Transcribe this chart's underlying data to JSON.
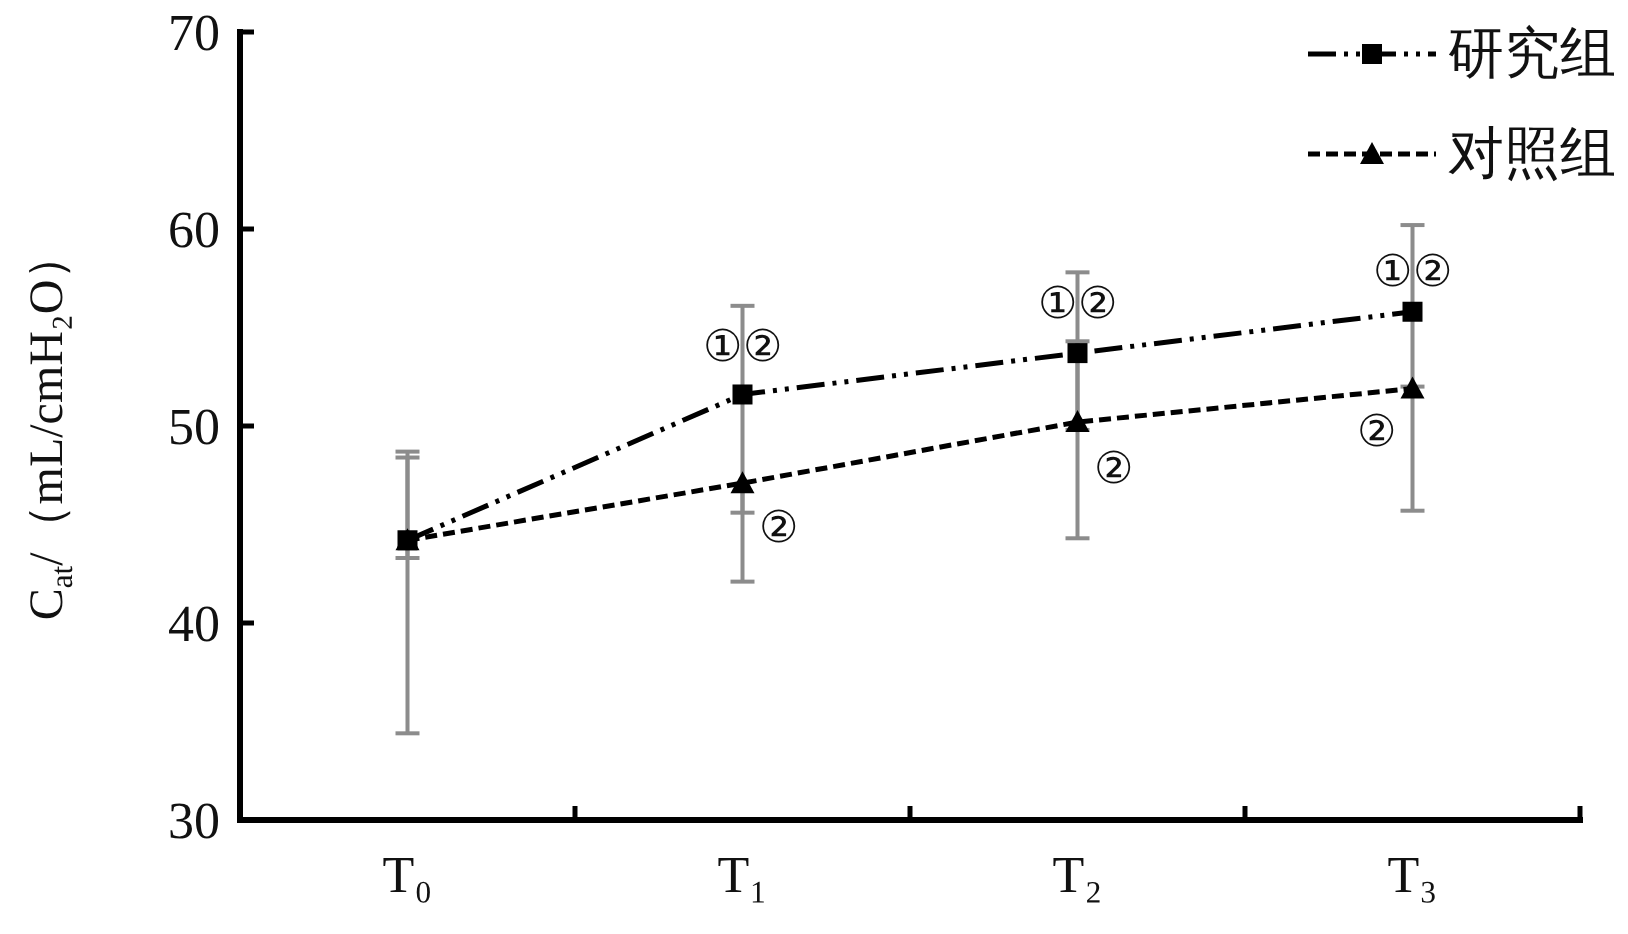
{
  "chart_data": {
    "type": "line",
    "ylabel": "C$_{at}$/（mL/cmH₂O）",
    "categories": [
      "T₀",
      "T₁",
      "T₂",
      "T₃"
    ],
    "series": [
      {
        "name": "研究组",
        "color": "#000000",
        "marker": "square",
        "line_style": "dashdot",
        "values": [
          44.2,
          51.6,
          53.7,
          55.8
        ],
        "errors": [
          [
            43.3,
            48.7
          ],
          [
            45.6,
            56.1
          ],
          [
            49.8,
            57.8
          ],
          [
            52.0,
            60.2
          ]
        ]
      },
      {
        "name": "对照组",
        "color": "#000000",
        "marker": "triangle",
        "line_style": "dashed",
        "values": [
          44.2,
          47.1,
          50.2,
          51.9
        ],
        "errors": [
          [
            34.4,
            48.4
          ],
          [
            42.1,
            47.1
          ],
          [
            44.3,
            54.3
          ],
          [
            45.7,
            51.9
          ]
        ]
      }
    ],
    "ylim": [
      30,
      70
    ],
    "yticks": [
      30,
      40,
      50,
      60,
      70
    ],
    "legend": "top right",
    "annotations": [
      {
        "text": "①②",
        "x": "T₁",
        "y": 54.1
      },
      {
        "text": "①②",
        "x": "T₂",
        "y": 56.3
      },
      {
        "text": "①②",
        "x": "T₃",
        "y": 57.9
      },
      {
        "text": "②",
        "x": "T₁",
        "y": 44.9
      },
      {
        "text": "②",
        "x": "T₂",
        "y": 47.9
      },
      {
        "text": "②",
        "x": "T₃",
        "y": 49.8
      }
    ]
  }
}
